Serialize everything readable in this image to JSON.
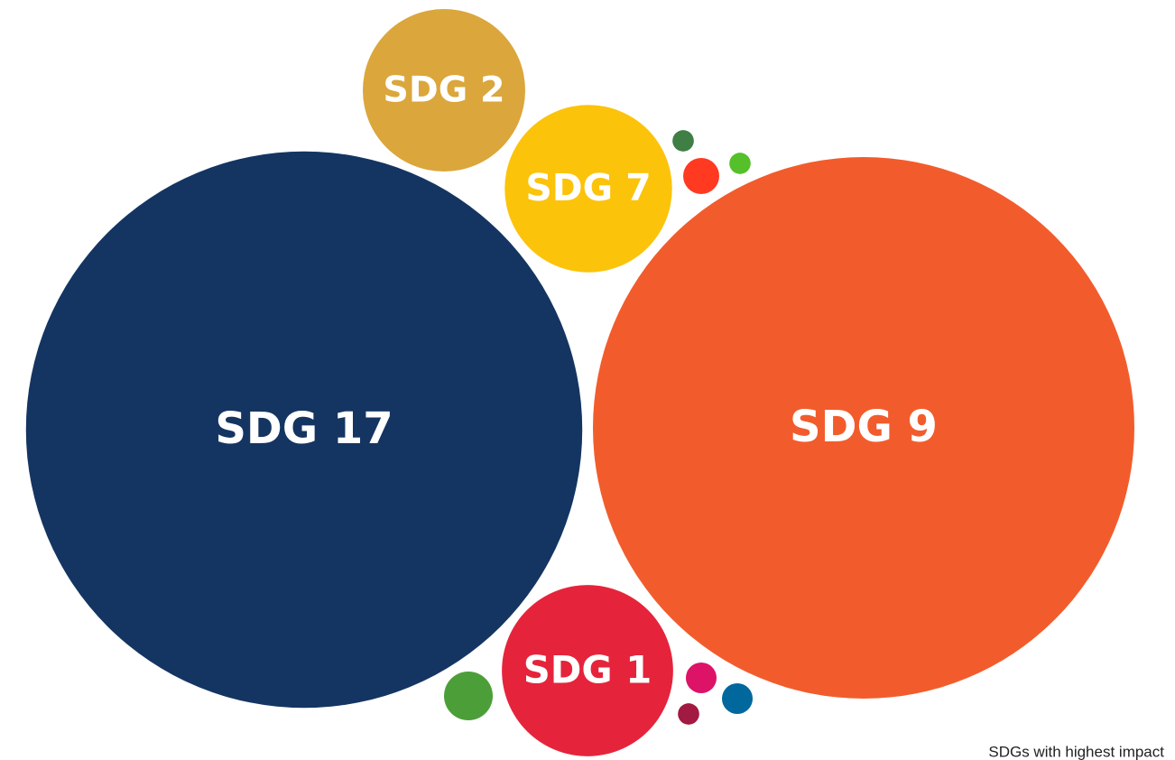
{
  "chart_data": {
    "type": "bubble",
    "caption": "SDGs with highest impact",
    "categories": [
      "SDG 17",
      "SDG 9",
      "SDG 2",
      "SDG 7",
      "SDG 1",
      null,
      null,
      null,
      null,
      null,
      null,
      null
    ],
    "values": [
      950,
      900,
      81,
      86,
      90,
      1.4,
      4,
      1.4,
      7.3,
      2.9,
      2.9,
      1.4
    ],
    "colors": [
      "#143562",
      "#f25c2c",
      "#dba63b",
      "#fcc30b",
      "#e5243b",
      "#3f7e44",
      "#ff3a21",
      "#56c02b",
      "#4c9f38",
      "#dd1367",
      "#00689d",
      "#a21942"
    ]
  }
}
